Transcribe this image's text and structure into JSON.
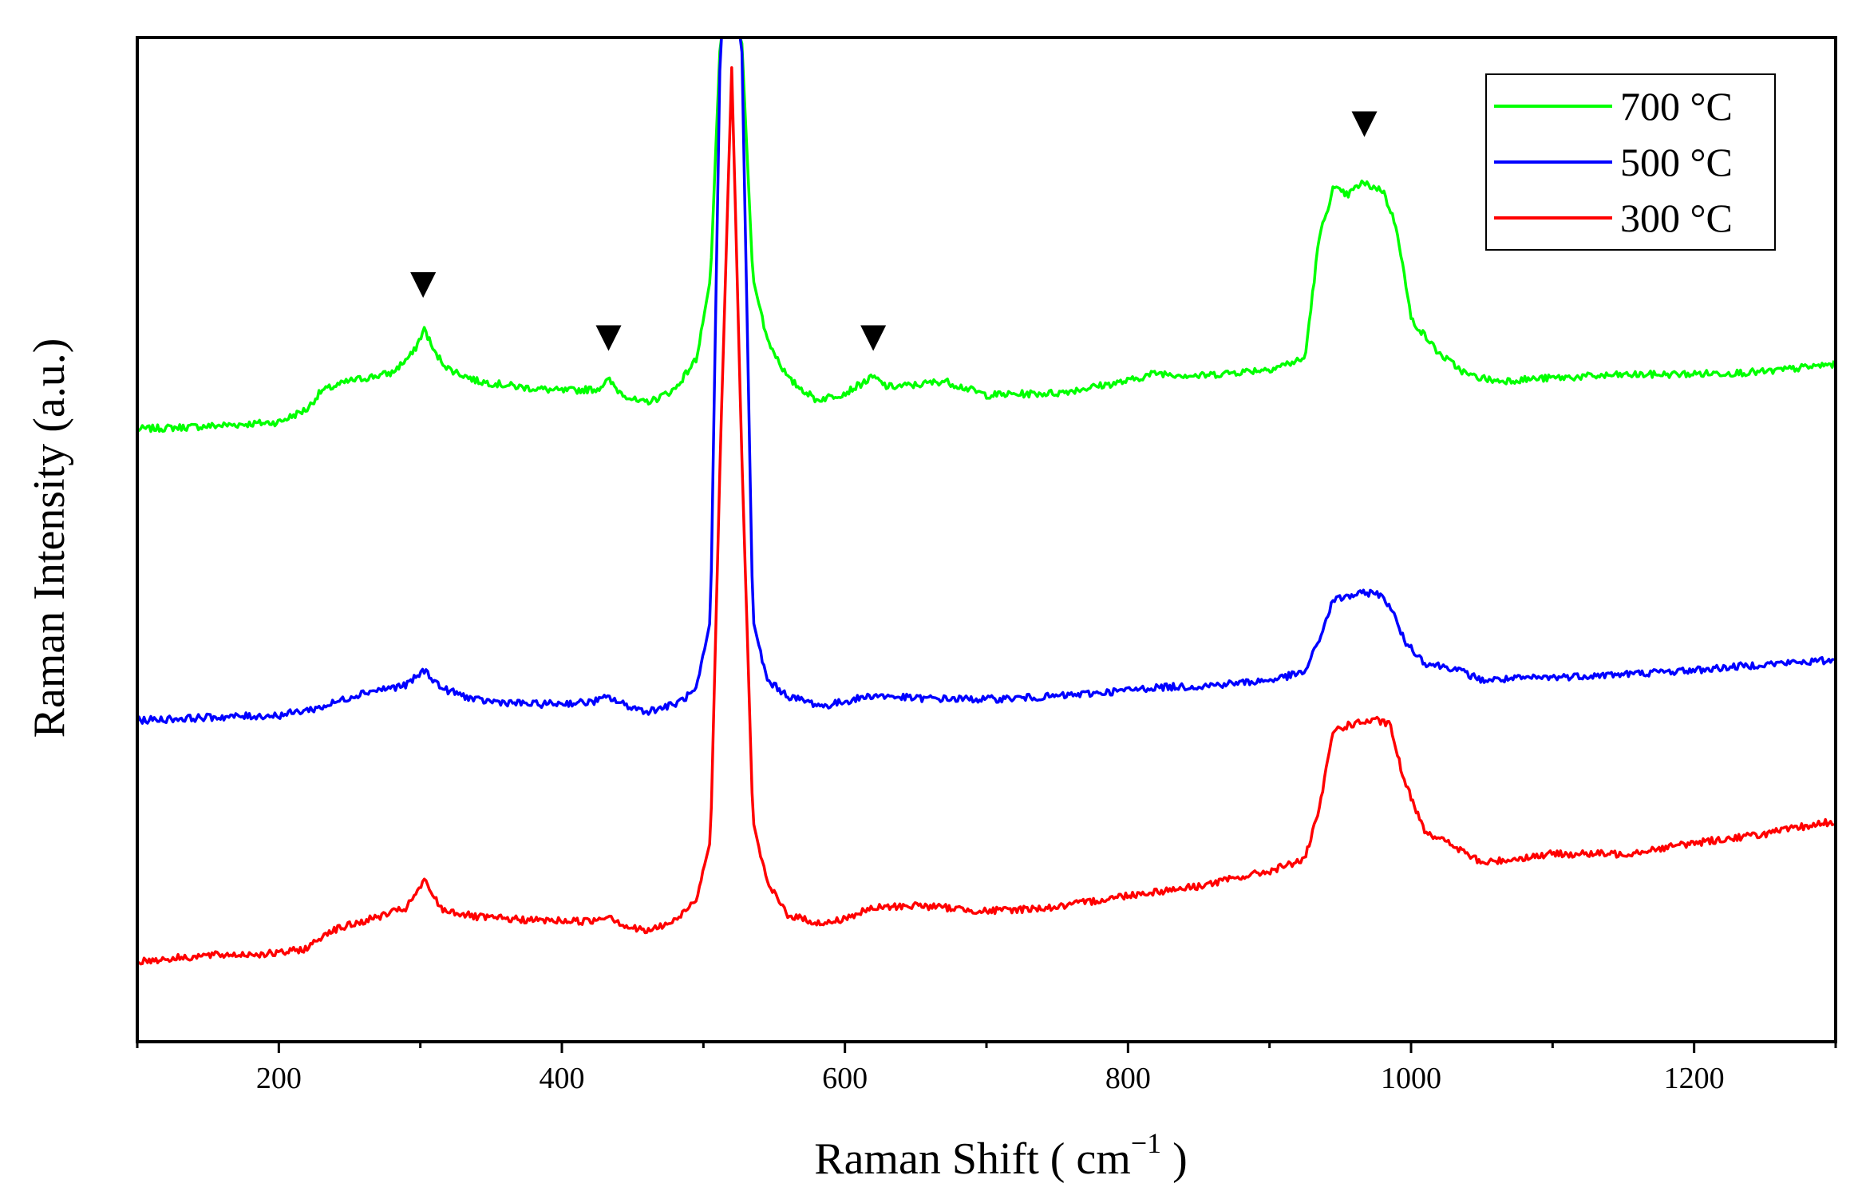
{
  "chart_data": {
    "type": "line",
    "title": "",
    "xlabel": "Raman Shift ( cm",
    "xlabel_unit_exp": "−1",
    "xlabel_close": " )",
    "ylabel": "Raman Intensity (a.u.)",
    "xlim": [
      100,
      1300
    ],
    "ylim": [
      0,
      100
    ],
    "x_ticks": [
      200,
      400,
      600,
      800,
      1000,
      1200
    ],
    "x_tick_labels": [
      "200",
      "400",
      "600",
      "800",
      "1000",
      "1200"
    ],
    "y_ticks_shown": false,
    "legend_position": "top-right",
    "series": [
      {
        "name": "700 °C",
        "color": "#00ff00",
        "points": [
          [
            100,
            61.0
          ],
          [
            150,
            61.3
          ],
          [
            200,
            61.7
          ],
          [
            220,
            63.0
          ],
          [
            230,
            64.8
          ],
          [
            250,
            65.8
          ],
          [
            280,
            66.6
          ],
          [
            295,
            68.6
          ],
          [
            303,
            71.0
          ],
          [
            310,
            68.6
          ],
          [
            320,
            67.0
          ],
          [
            340,
            65.8
          ],
          [
            370,
            65.2
          ],
          [
            400,
            64.8
          ],
          [
            425,
            65.0
          ],
          [
            433,
            65.9
          ],
          [
            440,
            64.8
          ],
          [
            455,
            63.6
          ],
          [
            465,
            63.9
          ],
          [
            480,
            65.0
          ],
          [
            495,
            68.0
          ],
          [
            505,
            76.0
          ],
          [
            512,
            100
          ],
          [
            527,
            100
          ],
          [
            535,
            76.0
          ],
          [
            545,
            70.0
          ],
          [
            560,
            66.0
          ],
          [
            580,
            63.9
          ],
          [
            600,
            64.6
          ],
          [
            615,
            65.8
          ],
          [
            620,
            66.2
          ],
          [
            630,
            65.2
          ],
          [
            650,
            65.4
          ],
          [
            670,
            65.8
          ],
          [
            700,
            64.4
          ],
          [
            750,
            64.6
          ],
          [
            800,
            65.8
          ],
          [
            820,
            66.6
          ],
          [
            850,
            66.3
          ],
          [
            900,
            67.0
          ],
          [
            925,
            68.0
          ],
          [
            935,
            80.0
          ],
          [
            945,
            85.0
          ],
          [
            955,
            84.3
          ],
          [
            965,
            85.5
          ],
          [
            980,
            84.8
          ],
          [
            990,
            81.0
          ],
          [
            1000,
            72.0
          ],
          [
            1020,
            68.5
          ],
          [
            1040,
            66.4
          ],
          [
            1060,
            65.8
          ],
          [
            1100,
            66.1
          ],
          [
            1150,
            66.4
          ],
          [
            1200,
            66.5
          ],
          [
            1250,
            66.7
          ],
          [
            1300,
            67.5
          ]
        ]
      },
      {
        "name": "500 °C",
        "color": "#0000ff",
        "points": [
          [
            100,
            32.0
          ],
          [
            150,
            32.3
          ],
          [
            200,
            32.5
          ],
          [
            230,
            33.3
          ],
          [
            260,
            34.8
          ],
          [
            290,
            35.5
          ],
          [
            303,
            37.0
          ],
          [
            315,
            35.2
          ],
          [
            340,
            34.0
          ],
          [
            380,
            33.6
          ],
          [
            420,
            33.8
          ],
          [
            433,
            34.3
          ],
          [
            445,
            33.5
          ],
          [
            460,
            32.9
          ],
          [
            480,
            33.6
          ],
          [
            495,
            35.0
          ],
          [
            505,
            42.0
          ],
          [
            512,
            100
          ],
          [
            527,
            100
          ],
          [
            535,
            42.0
          ],
          [
            545,
            36.0
          ],
          [
            560,
            34.4
          ],
          [
            585,
            33.4
          ],
          [
            600,
            33.9
          ],
          [
            620,
            34.5
          ],
          [
            650,
            34.2
          ],
          [
            700,
            34.1
          ],
          [
            750,
            34.4
          ],
          [
            800,
            35.0
          ],
          [
            820,
            35.3
          ],
          [
            850,
            35.4
          ],
          [
            900,
            36.0
          ],
          [
            925,
            36.8
          ],
          [
            935,
            40.0
          ],
          [
            945,
            44.0
          ],
          [
            960,
            44.5
          ],
          [
            975,
            44.8
          ],
          [
            985,
            43.5
          ],
          [
            995,
            40.0
          ],
          [
            1010,
            37.7
          ],
          [
            1030,
            37.2
          ],
          [
            1050,
            36.0
          ],
          [
            1100,
            36.3
          ],
          [
            1150,
            36.6
          ],
          [
            1200,
            37.0
          ],
          [
            1250,
            37.6
          ],
          [
            1300,
            38.0
          ]
        ]
      },
      {
        "name": "300 °C",
        "color": "#ff0000",
        "points": [
          [
            100,
            8.0
          ],
          [
            150,
            8.6
          ],
          [
            200,
            8.8
          ],
          [
            220,
            9.3
          ],
          [
            235,
            11.0
          ],
          [
            260,
            12.0
          ],
          [
            290,
            13.3
          ],
          [
            303,
            16.0
          ],
          [
            315,
            13.2
          ],
          [
            340,
            12.4
          ],
          [
            380,
            12.1
          ],
          [
            420,
            12.0
          ],
          [
            433,
            12.6
          ],
          [
            445,
            11.5
          ],
          [
            460,
            11.0
          ],
          [
            480,
            12.0
          ],
          [
            495,
            14.3
          ],
          [
            505,
            20.0
          ],
          [
            512,
            59.0
          ],
          [
            520,
            97.0
          ],
          [
            527,
            59.0
          ],
          [
            535,
            22.0
          ],
          [
            545,
            15.8
          ],
          [
            560,
            12.6
          ],
          [
            585,
            11.7
          ],
          [
            600,
            12.3
          ],
          [
            620,
            13.3
          ],
          [
            650,
            13.6
          ],
          [
            700,
            13.0
          ],
          [
            750,
            13.4
          ],
          [
            800,
            14.6
          ],
          [
            850,
            15.5
          ],
          [
            900,
            17.0
          ],
          [
            925,
            18.2
          ],
          [
            935,
            23.0
          ],
          [
            945,
            31.0
          ],
          [
            960,
            31.7
          ],
          [
            975,
            32.0
          ],
          [
            985,
            31.6
          ],
          [
            995,
            26.0
          ],
          [
            1010,
            21.0
          ],
          [
            1030,
            19.5
          ],
          [
            1050,
            17.8
          ],
          [
            1100,
            18.7
          ],
          [
            1150,
            18.7
          ],
          [
            1200,
            19.8
          ],
          [
            1250,
            20.7
          ],
          [
            1300,
            22.0
          ]
        ]
      }
    ],
    "annotations": [
      {
        "symbol": "▼",
        "x": 302,
        "y": 74.5
      },
      {
        "symbol": "▼",
        "x": 433,
        "y": 69.2
      },
      {
        "symbol": "▼",
        "x": 620,
        "y": 69.2
      },
      {
        "symbol": "▼",
        "x": 967,
        "y": 90.5
      }
    ]
  }
}
